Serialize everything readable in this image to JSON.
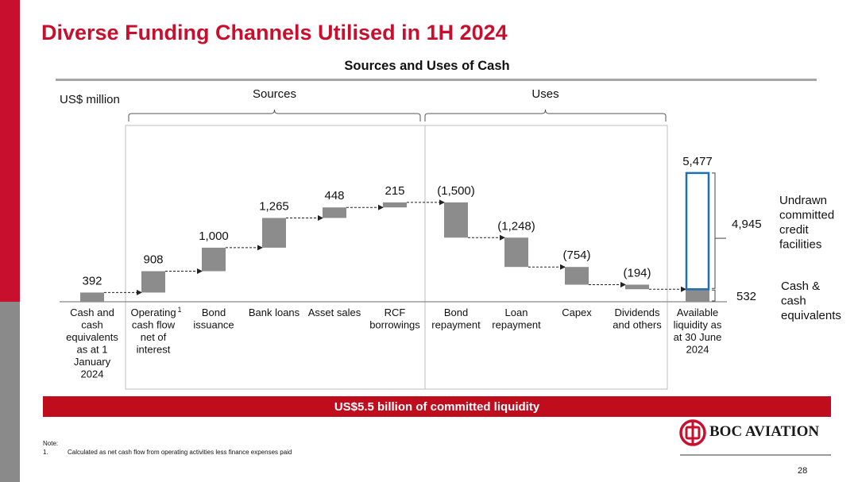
{
  "page": {
    "title": "Diverse Funding Channels Utilised in 1H 2024",
    "banner": "US$5.5 billion of committed liquidity",
    "note_heading": "Note:",
    "note_number": "1.",
    "note_text": "Calculated as net cash flow from operating activities less finance expenses paid",
    "logo_text": "BOC AVIATION",
    "page_number": "28"
  },
  "colors": {
    "brand_red": "#c8102e",
    "bar_grey": "#8c8c8c",
    "highlight_blue": "#1f6fb5"
  },
  "chart_data": {
    "type": "waterfall",
    "title": "Sources and Uses of Cash",
    "unit_label": "US$ million",
    "groups": [
      {
        "label": "Sources",
        "from": 1,
        "to": 5
      },
      {
        "label": "Uses",
        "from": 6,
        "to": 9
      }
    ],
    "bars": [
      {
        "category": [
          "Cash and",
          "cash",
          "equivalents",
          "as at 1",
          "January",
          "2024"
        ],
        "label": "392",
        "start": 0,
        "end": 392,
        "kind": "total"
      },
      {
        "category": [
          "Operating",
          "cash flow",
          "net of",
          "interest"
        ],
        "footnote": "1",
        "label": "908",
        "start": 392,
        "end": 1300,
        "kind": "source"
      },
      {
        "category": [
          "Bond",
          "issuance"
        ],
        "label": "1,000",
        "start": 1300,
        "end": 2300,
        "kind": "source"
      },
      {
        "category": [
          "Bank loans"
        ],
        "label": "1,265",
        "start": 2300,
        "end": 3565,
        "kind": "source"
      },
      {
        "category": [
          "Asset sales"
        ],
        "label": "448",
        "start": 3565,
        "end": 4013,
        "kind": "source"
      },
      {
        "category": [
          "RCF",
          "borrowings"
        ],
        "label": "215",
        "start": 4013,
        "end": 4228,
        "kind": "source"
      },
      {
        "category": [
          "Bond",
          "repayment"
        ],
        "label": "(1,500)",
        "start": 4228,
        "end": 2728,
        "kind": "use"
      },
      {
        "category": [
          "Loan",
          "repayment"
        ],
        "label": "(1,248)",
        "start": 2728,
        "end": 1480,
        "kind": "use"
      },
      {
        "category": [
          "Capex"
        ],
        "label": "(754)",
        "start": 1480,
        "end": 726,
        "kind": "use"
      },
      {
        "category": [
          "Dividends",
          "and others"
        ],
        "label": "(194)",
        "start": 726,
        "end": 532,
        "kind": "use"
      }
    ],
    "final": {
      "category": [
        "Available",
        "liquidity as",
        "at 30 June",
        "2024"
      ],
      "total_label": "5,477",
      "total": 5477,
      "segments": [
        {
          "name": "Cash & cash equivalents",
          "label_lines": [
            "Cash &",
            "cash",
            "equivalents"
          ],
          "value": 532,
          "value_label": "532"
        },
        {
          "name": "Undrawn committed credit facilities",
          "label_lines": [
            "Undrawn",
            "committed",
            "credit",
            "facilities"
          ],
          "value": 4945,
          "value_label": "4,945"
        }
      ]
    }
  }
}
